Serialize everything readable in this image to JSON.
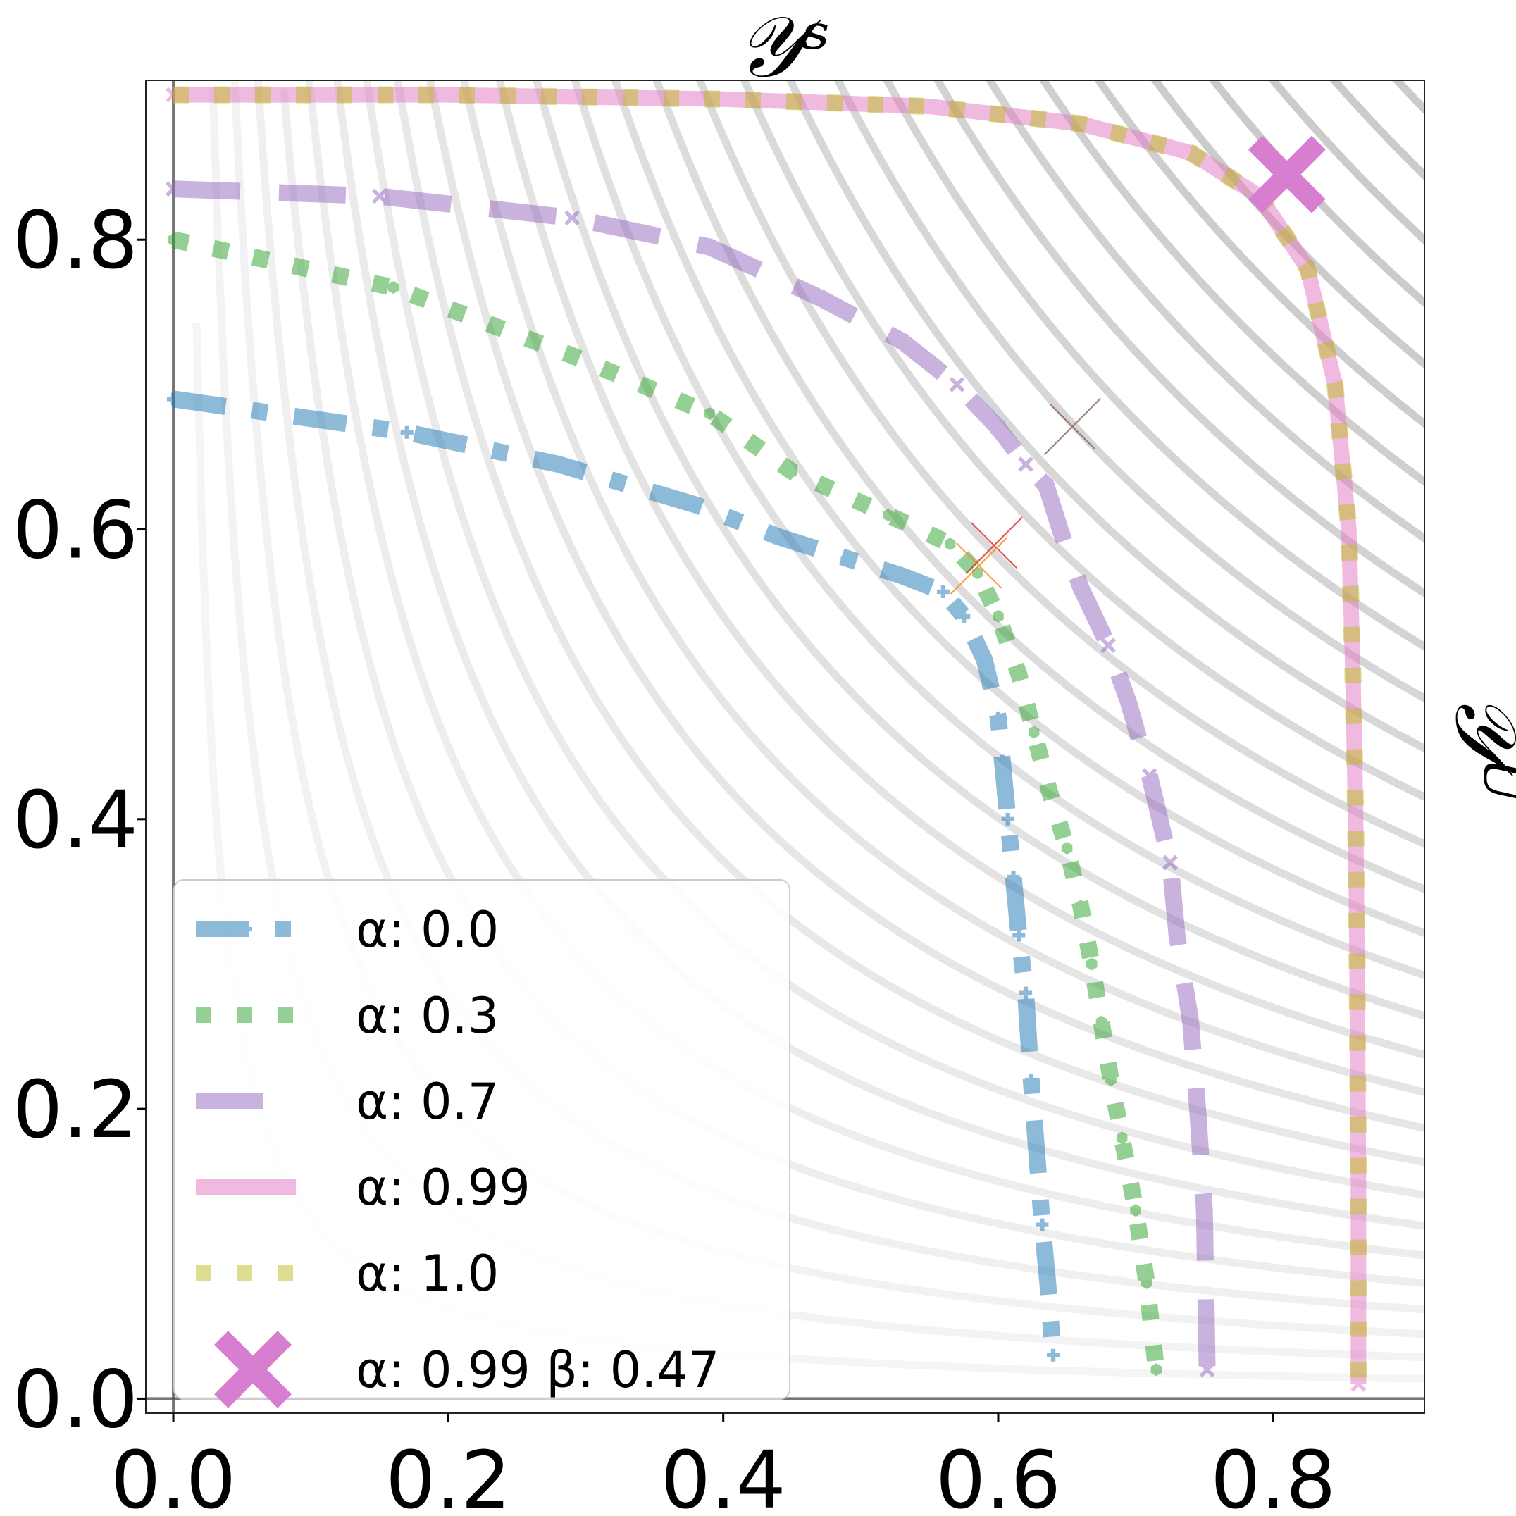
{
  "chart_data": {
    "type": "line",
    "title": "",
    "xlabel": "𝒴ˢ",
    "ylabel": "𝒴ᵁ",
    "xlim": [
      -0.02,
      0.91
    ],
    "ylim": [
      -0.01,
      0.91
    ],
    "x_ticks": [
      "0.0",
      "0.2",
      "0.4",
      "0.6",
      "0.8"
    ],
    "y_ticks": [
      "0.0",
      "0.2",
      "0.4",
      "0.6",
      "0.8"
    ],
    "grid": false,
    "background_contours": true,
    "legend_position": "lower-left",
    "series": [
      {
        "name": "α: 0.0",
        "color": "#1f77b4",
        "linestyle": "dashdot",
        "marker": "plus",
        "x": [
          0.0,
          0.17,
          0.28,
          0.38,
          0.44,
          0.49,
          0.53,
          0.56,
          0.575,
          0.59,
          0.6,
          0.603,
          0.607,
          0.611,
          0.615,
          0.62,
          0.624,
          0.628,
          0.632,
          0.636,
          0.64
        ],
        "y": [
          0.69,
          0.667,
          0.645,
          0.617,
          0.595,
          0.58,
          0.568,
          0.557,
          0.54,
          0.51,
          0.47,
          0.44,
          0.4,
          0.36,
          0.32,
          0.28,
          0.22,
          0.17,
          0.12,
          0.08,
          0.03
        ]
      },
      {
        "name": "α: 0.3",
        "color": "#2ca02c",
        "linestyle": "dotted",
        "marker": "hexagon",
        "x": [
          0.0,
          0.16,
          0.29,
          0.39,
          0.45,
          0.52,
          0.565,
          0.585,
          0.6,
          0.615,
          0.626,
          0.637,
          0.65,
          0.66,
          0.668,
          0.675,
          0.682,
          0.69,
          0.7,
          0.708,
          0.715
        ],
        "y": [
          0.8,
          0.767,
          0.72,
          0.68,
          0.64,
          0.61,
          0.59,
          0.57,
          0.54,
          0.5,
          0.46,
          0.42,
          0.38,
          0.34,
          0.3,
          0.26,
          0.22,
          0.18,
          0.13,
          0.08,
          0.02
        ]
      },
      {
        "name": "α: 0.7",
        "color": "#9467bd",
        "linestyle": "dashed",
        "marker": "x",
        "x": [
          0.0,
          0.15,
          0.29,
          0.39,
          0.47,
          0.53,
          0.57,
          0.6,
          0.62,
          0.635,
          0.645,
          0.66,
          0.68,
          0.695,
          0.71,
          0.725,
          0.73,
          0.74,
          0.745,
          0.75,
          0.752
        ],
        "y": [
          0.835,
          0.83,
          0.815,
          0.795,
          0.76,
          0.73,
          0.7,
          0.67,
          0.645,
          0.63,
          0.6,
          0.56,
          0.52,
          0.48,
          0.43,
          0.37,
          0.32,
          0.26,
          0.2,
          0.13,
          0.02
        ]
      },
      {
        "name": "α: 0.99",
        "color": "#e377c2",
        "linestyle": "solid",
        "marker": "x",
        "x": [
          0.0,
          0.2,
          0.4,
          0.55,
          0.66,
          0.74,
          0.79,
          0.825,
          0.845,
          0.855,
          0.858,
          0.86,
          0.861,
          0.862,
          0.862
        ],
        "y": [
          0.9,
          0.9,
          0.897,
          0.892,
          0.88,
          0.86,
          0.83,
          0.78,
          0.7,
          0.6,
          0.5,
          0.4,
          0.3,
          0.15,
          0.01
        ]
      },
      {
        "name": "α: 1.0",
        "color": "#bcbd22",
        "linestyle": "dotted",
        "marker": "none",
        "x": [
          0.0,
          0.2,
          0.4,
          0.55,
          0.66,
          0.74,
          0.79,
          0.825,
          0.845,
          0.855,
          0.858,
          0.86,
          0.861,
          0.862,
          0.862
        ],
        "y": [
          0.9,
          0.9,
          0.897,
          0.892,
          0.88,
          0.86,
          0.83,
          0.78,
          0.7,
          0.6,
          0.5,
          0.4,
          0.3,
          0.15,
          0.01
        ]
      }
    ],
    "highlight_point": {
      "name": "α: 0.99 β: 0.47",
      "color": "#d77ed0",
      "marker": "X",
      "x": 0.81,
      "y": 0.845
    },
    "minor_markers": [
      {
        "color": "#d62728",
        "x": 0.597,
        "y": 0.589
      },
      {
        "color": "#ff7f0e",
        "x": 0.586,
        "y": 0.575
      },
      {
        "color": "#8c564b",
        "x": 0.654,
        "y": 0.671
      }
    ]
  }
}
